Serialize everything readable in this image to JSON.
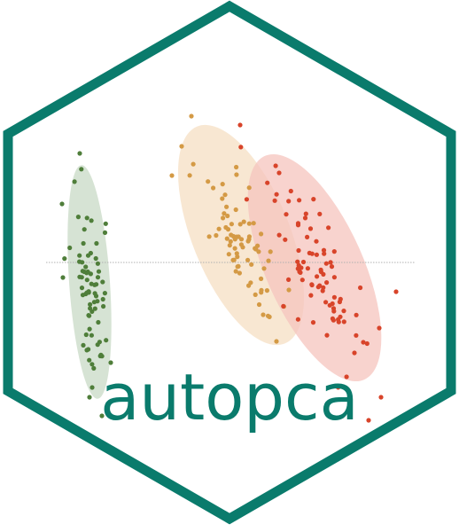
{
  "logo": {
    "text": "autopca",
    "colors": {
      "border": "#0a7b6c",
      "text": "#0a7b6c",
      "background": "#ffffff",
      "axis_line": "#b0b0b0",
      "cluster_green_point": "#4f7e3a",
      "cluster_green_ellipse": "#c8d9c6",
      "cluster_orange_point": "#d49a45",
      "cluster_orange_ellipse": "#f6dfc3",
      "cluster_red_point": "#d8442a",
      "cluster_red_ellipse": "#f5c4bd"
    }
  }
}
